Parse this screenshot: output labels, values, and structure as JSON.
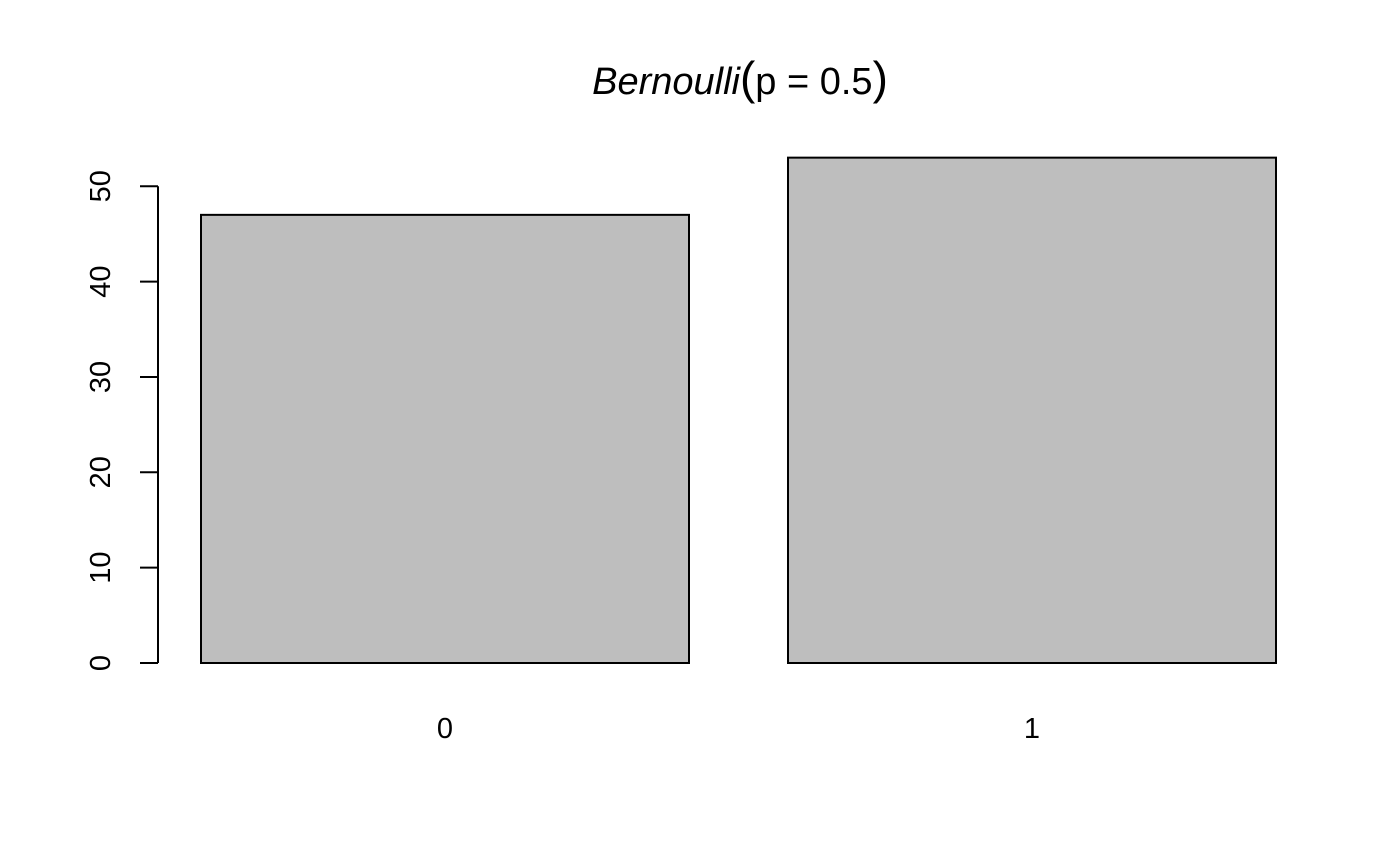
{
  "chart_data": {
    "type": "bar",
    "title": {
      "distribution": "Bernoulli",
      "open_paren": "(",
      "parameter": "p = 0.5",
      "close_paren": ")"
    },
    "categories": [
      "0",
      "1"
    ],
    "values": [
      47,
      53
    ],
    "ylim": [
      0,
      50
    ],
    "y_ticks": [
      "0",
      "10",
      "20",
      "30",
      "40",
      "50"
    ],
    "xlabel": "",
    "ylabel": "",
    "grid": false,
    "bar_color": "#bebebe",
    "border_color": "#000000"
  }
}
